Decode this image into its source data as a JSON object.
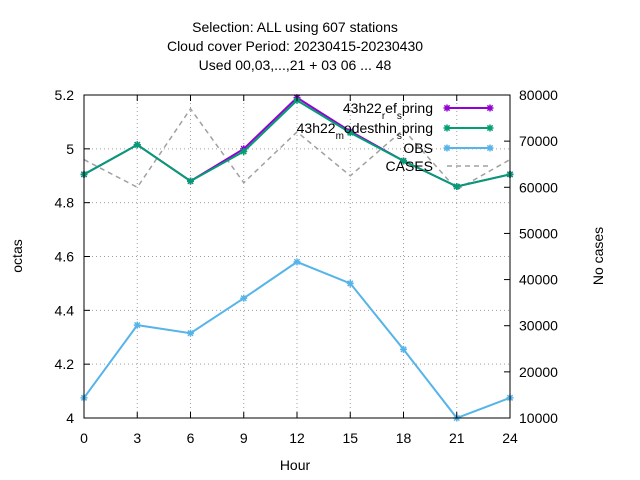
{
  "title_lines": [
    "Selection: ALL using   607 stations",
    "Cloud cover   Period: 20230415-20230430",
    "Used  00,03,...,21  + 03 06 ... 48"
  ],
  "chart_data": {
    "type": "line",
    "xlabel": "Hour",
    "ylabel": "octas",
    "y2label": "No cases",
    "x": [
      0,
      3,
      6,
      9,
      12,
      15,
      18,
      21,
      24
    ],
    "xlim": [
      0,
      24
    ],
    "ylim": [
      4.0,
      5.2
    ],
    "y2lim": [
      10000,
      80000
    ],
    "xticks": [
      "0",
      "3",
      "6",
      "9",
      "12",
      "15",
      "18",
      "21",
      "24"
    ],
    "yticks": [
      "4",
      "4.2",
      "4.4",
      "4.6",
      "4.8",
      "5",
      "5.2"
    ],
    "y2ticks": [
      "10000",
      "20000",
      "30000",
      "40000",
      "50000",
      "60000",
      "70000",
      "80000"
    ],
    "grid": true,
    "legend_position": "top-right",
    "series": [
      {
        "name": "43h22_ref_spring",
        "legend_parts": [
          {
            "t": "43h22",
            "sub": false
          },
          {
            "t": "r",
            "sub": true
          },
          {
            "t": "ef",
            "sub": false
          },
          {
            "t": "s",
            "sub": true
          },
          {
            "t": "pring",
            "sub": false
          }
        ],
        "axis": "y",
        "color": "#9400d3",
        "style": "solid",
        "marker": "star",
        "values": [
          4.905,
          5.015,
          4.88,
          5.0,
          5.19,
          5.065,
          4.955,
          4.86,
          4.905
        ]
      },
      {
        "name": "43h22_modesthin_spring",
        "legend_parts": [
          {
            "t": "43h22",
            "sub": false
          },
          {
            "t": "m",
            "sub": true
          },
          {
            "t": "odesthin",
            "sub": false
          },
          {
            "t": "s",
            "sub": true
          },
          {
            "t": "pring",
            "sub": false
          }
        ],
        "axis": "y",
        "color": "#009e73",
        "style": "solid",
        "marker": "star",
        "values": [
          4.905,
          5.015,
          4.88,
          4.99,
          5.18,
          5.06,
          4.955,
          4.86,
          4.905
        ]
      },
      {
        "name": "OBS",
        "legend_parts": [
          {
            "t": "OBS",
            "sub": false
          }
        ],
        "axis": "y",
        "color": "#56b4e9",
        "style": "solid",
        "marker": "star",
        "values": [
          4.075,
          4.345,
          4.315,
          4.445,
          4.58,
          4.5,
          4.255,
          4.0,
          4.075
        ]
      },
      {
        "name": "CASES",
        "legend_parts": [
          {
            "t": "CASES",
            "sub": false
          }
        ],
        "axis": "y2",
        "color": "#a0a0a0",
        "style": "dashed",
        "marker": "none",
        "values": [
          66000,
          60000,
          77000,
          61000,
          72000,
          62500,
          72500,
          59500,
          66000
        ]
      }
    ]
  }
}
